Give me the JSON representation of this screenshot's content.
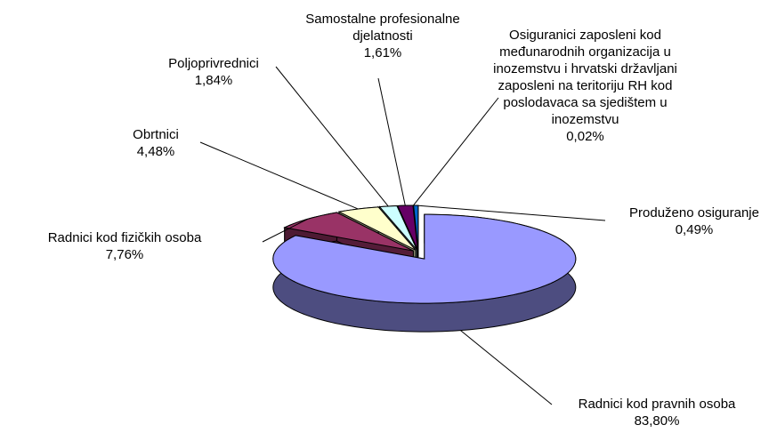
{
  "chart_data": {
    "type": "pie3d",
    "categories": [
      "Radnici kod pravnih osoba",
      "Radnici kod fizičkih osoba",
      "Obrtnici",
      "Poljoprivrednici",
      "Samostalne profesionalne djelatnosti",
      "Osiguranici zaposleni kod međunarodnih organizacija u inozemstvu i hrvatski državljani zaposleni na teritoriju RH kod poslodavaca sa sjedištem u inozemstvu",
      "Produženo osiguranje"
    ],
    "values": [
      83.8,
      7.76,
      4.48,
      1.84,
      1.61,
      0.02,
      0.49
    ],
    "value_labels": [
      "83,80%",
      "7,76%",
      "4,48%",
      "1,84%",
      "1,61%",
      "0,02%",
      "0,49%"
    ],
    "colors": [
      "#9999ff",
      "#993366",
      "#ffffcc",
      "#ccffff",
      "#660066",
      "#ff8080",
      "#0066cc"
    ]
  }
}
